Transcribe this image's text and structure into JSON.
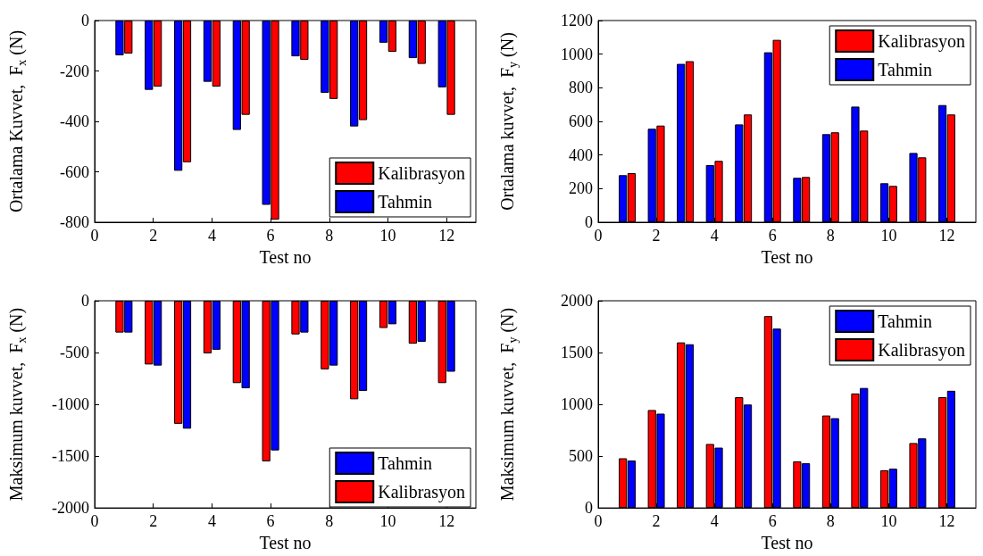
{
  "chart_data": [
    {
      "type": "bar",
      "xlabel": "Test no",
      "ylabel": "Ortalama Kuvvet,  F$_{x}$ (N)",
      "xlim": [
        0,
        13
      ],
      "xticks": [
        0,
        2,
        4,
        6,
        8,
        10,
        12
      ],
      "ylim": [
        -800,
        0
      ],
      "yticks": [
        -800,
        -600,
        -400,
        -200,
        0
      ],
      "grid": false,
      "legend": "bottom right",
      "series": [
        {
          "name": "Kalibrasyon",
          "color": "#ff0000",
          "x": [
            1.15,
            2.15,
            3.15,
            4.15,
            5.15,
            6.15,
            7.15,
            8.15,
            9.15,
            10.15,
            11.15,
            12.15
          ],
          "values": [
            -131,
            -262,
            -562,
            -262,
            -374,
            -790,
            -156,
            -311,
            -395,
            -124,
            -172,
            -374
          ]
        },
        {
          "name": "Tahmin",
          "color": "#0000ff",
          "x": [
            0.85,
            1.85,
            2.85,
            3.85,
            4.85,
            5.85,
            6.85,
            7.85,
            8.85,
            9.85,
            10.85,
            11.85
          ],
          "values": [
            -138,
            -275,
            -596,
            -243,
            -434,
            -731,
            -142,
            -287,
            -420,
            -88,
            -149,
            -265
          ]
        }
      ]
    },
    {
      "type": "bar",
      "xlabel": "Test no",
      "ylabel": "Ortalama kuvvet,  F$_{y}$ (N)",
      "xlim": [
        0,
        13
      ],
      "xticks": [
        0,
        2,
        4,
        6,
        8,
        10,
        12
      ],
      "ylim": [
        0,
        1200
      ],
      "yticks": [
        0,
        200,
        400,
        600,
        800,
        1000,
        1200
      ],
      "grid": false,
      "legend": "top right",
      "series": [
        {
          "name": "Kalibrasyon",
          "color": "#ff0000",
          "x": [
            1.15,
            2.15,
            3.15,
            4.15,
            5.15,
            6.15,
            7.15,
            8.15,
            9.15,
            10.15,
            11.15,
            12.15
          ],
          "values": [
            292,
            575,
            958,
            365,
            641,
            1085,
            269,
            535,
            545,
            216,
            386,
            641
          ]
        },
        {
          "name": "Tahmin",
          "color": "#0000ff",
          "x": [
            0.85,
            1.85,
            2.85,
            3.85,
            4.85,
            5.85,
            6.85,
            7.85,
            8.85,
            9.85,
            10.85,
            11.85
          ],
          "values": [
            280,
            556,
            942,
            340,
            582,
            1011,
            264,
            524,
            688,
            232,
            412,
            697
          ]
        }
      ]
    },
    {
      "type": "bar",
      "xlabel": "Test no",
      "ylabel": "Maksimum kuvvet,  F$_{x}$ (N)",
      "xlim": [
        0,
        13
      ],
      "xticks": [
        0,
        2,
        4,
        6,
        8,
        10,
        12
      ],
      "ylim": [
        -2000,
        0
      ],
      "yticks": [
        -2000,
        -1500,
        -1000,
        -500,
        0
      ],
      "grid": false,
      "legend": "bottom right",
      "series": [
        {
          "name": "Tahmin",
          "color": "#0000ff",
          "x": [
            1.15,
            2.15,
            3.15,
            4.15,
            5.15,
            6.15,
            7.15,
            8.15,
            9.15,
            10.15,
            11.15,
            12.15
          ],
          "values": [
            -307,
            -626,
            -1235,
            -473,
            -845,
            -1445,
            -307,
            -626,
            -871,
            -227,
            -396,
            -685
          ]
        },
        {
          "name": "Kalibrasyon",
          "color": "#ff0000",
          "x": [
            0.85,
            1.85,
            2.85,
            3.85,
            4.85,
            5.85,
            6.85,
            7.85,
            8.85,
            9.85,
            10.85,
            11.85
          ],
          "values": [
            -307,
            -615,
            -1188,
            -508,
            -795,
            -1551,
            -325,
            -662,
            -951,
            -263,
            -414,
            -795
          ]
        }
      ]
    },
    {
      "type": "bar",
      "xlabel": "Test no",
      "ylabel": "Maksimum kuvvet,  F$_{y}$ (N)",
      "xlim": [
        0,
        13
      ],
      "xticks": [
        0,
        2,
        4,
        6,
        8,
        10,
        12
      ],
      "ylim": [
        0,
        2000
      ],
      "yticks": [
        0,
        500,
        1000,
        1500,
        2000
      ],
      "grid": false,
      "legend": "top right",
      "series": [
        {
          "name": "Tahmin",
          "color": "#0000ff",
          "x": [
            1.15,
            2.15,
            3.15,
            4.15,
            5.15,
            6.15,
            7.15,
            8.15,
            9.15,
            10.15,
            11.15,
            12.15
          ],
          "values": [
            458,
            910,
            1580,
            582,
            998,
            1731,
            431,
            866,
            1158,
            378,
            671,
            1131
          ]
        },
        {
          "name": "Kalibrasyon",
          "color": "#ff0000",
          "x": [
            0.85,
            1.85,
            2.85,
            3.85,
            4.85,
            5.85,
            6.85,
            7.85,
            8.85,
            9.85,
            10.85,
            11.85
          ],
          "values": [
            479,
            945,
            1598,
            617,
            1069,
            1852,
            449,
            892,
            1105,
            363,
            626,
            1069
          ]
        }
      ]
    }
  ]
}
